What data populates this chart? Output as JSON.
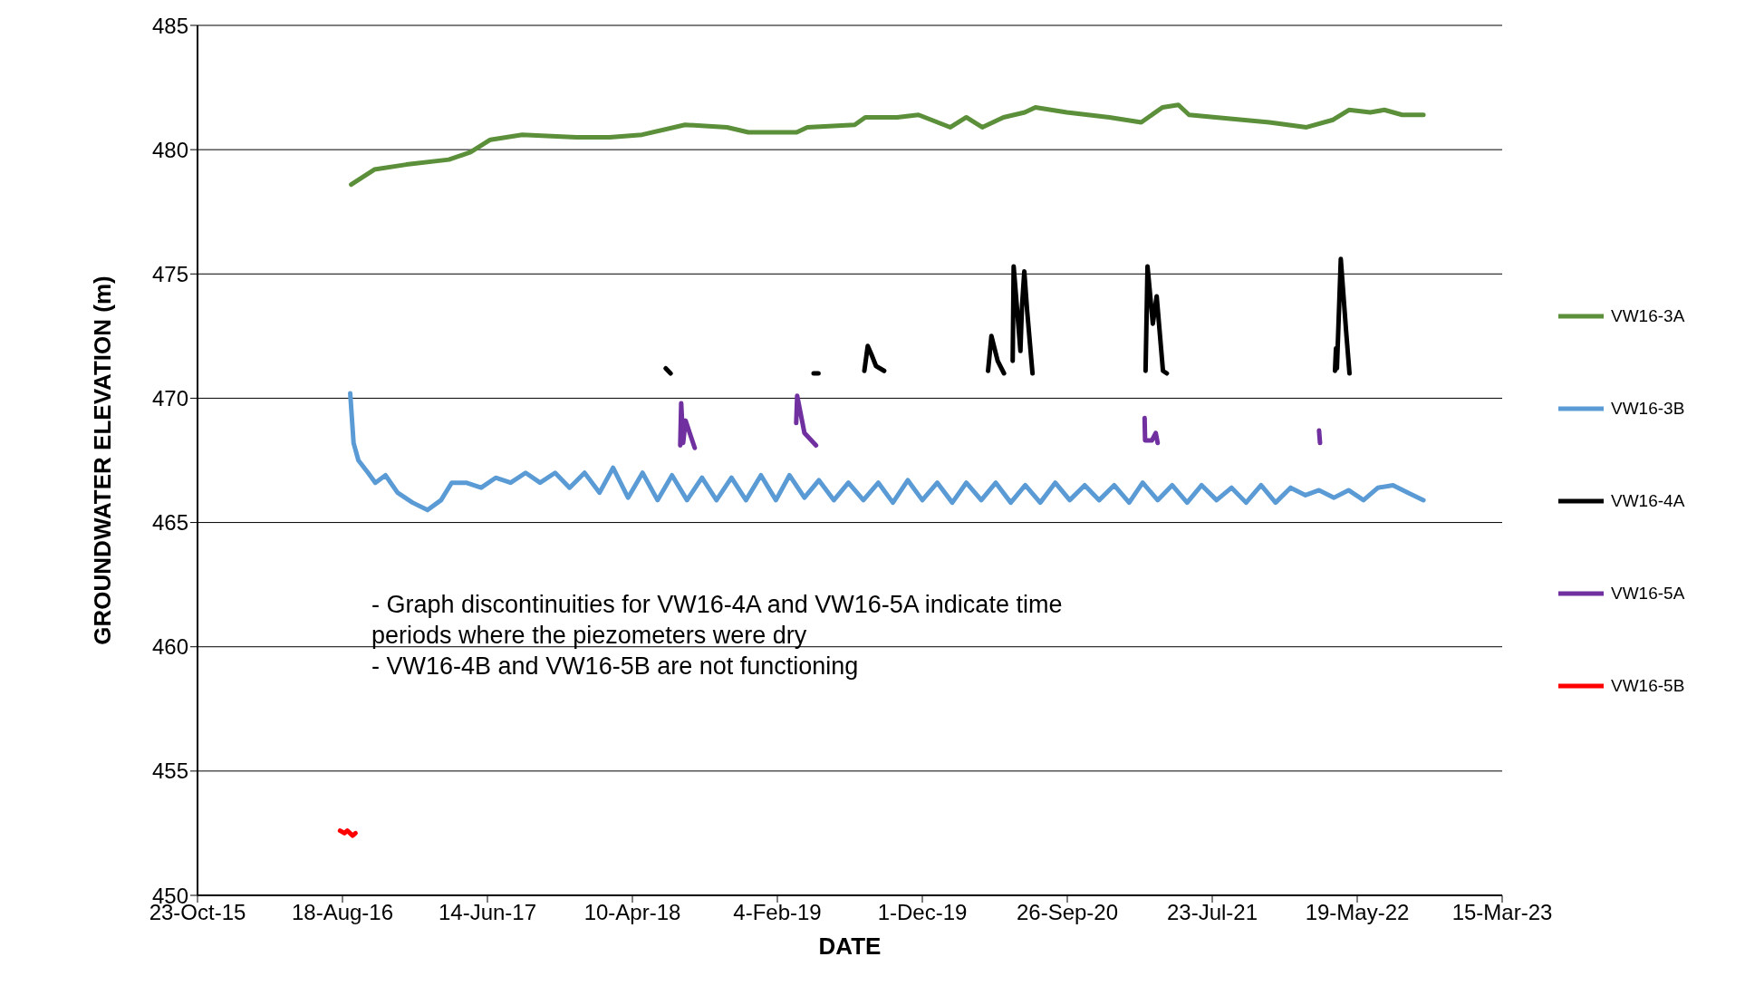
{
  "chart_data": {
    "type": "line",
    "xlabel": "DATE",
    "ylabel": "GROUNDWATER ELEVATION (m)",
    "xlim": [
      "2015-10-23",
      "2023-03-15"
    ],
    "xticks": [
      {
        "value": "2015-10-23",
        "label": "23-Oct-15"
      },
      {
        "value": "2016-08-18",
        "label": "18-Aug-16"
      },
      {
        "value": "2017-06-14",
        "label": "14-Jun-17"
      },
      {
        "value": "2018-04-10",
        "label": "10-Apr-18"
      },
      {
        "value": "2019-02-04",
        "label": "4-Feb-19"
      },
      {
        "value": "2019-12-01",
        "label": "1-Dec-19"
      },
      {
        "value": "2020-09-26",
        "label": "26-Sep-20"
      },
      {
        "value": "2021-07-23",
        "label": "23-Jul-21"
      },
      {
        "value": "2022-05-19",
        "label": "19-May-22"
      },
      {
        "value": "2023-03-15",
        "label": "15-Mar-23"
      }
    ],
    "ylim": [
      450,
      485
    ],
    "yticks": [
      450,
      455,
      460,
      465,
      470,
      475,
      480,
      485
    ],
    "grid": "y",
    "legend": "right",
    "marker": "none",
    "line_style": "solid",
    "annotations": [
      "- Graph discontinuities for VW16-4A and VW16-5A indicate time periods where the piezometers were dry",
      "- VW16-4B and VW16-5B are not functioning"
    ],
    "series": [
      {
        "name": "VW16-3A",
        "color": "#5b8f3a",
        "x": [
          "2016-09-05",
          "2016-10-23",
          "2016-12-28",
          "2017-03-26",
          "2017-05-10",
          "2017-06-20",
          "2017-08-25",
          "2017-12-15",
          "2018-02-22",
          "2018-04-30",
          "2018-07-28",
          "2018-10-23",
          "2018-12-06",
          "2019-03-16",
          "2019-04-07",
          "2019-07-14",
          "2019-08-05",
          "2019-10-10",
          "2019-11-23",
          "2020-01-28",
          "2020-03-01",
          "2020-04-03",
          "2020-05-17",
          "2020-06-30",
          "2020-07-22",
          "2020-09-25",
          "2020-12-22",
          "2021-02-26",
          "2021-04-11",
          "2021-05-14",
          "2021-06-05",
          "2021-07-30",
          "2021-11-18",
          "2022-02-03",
          "2022-03-30",
          "2022-05-02",
          "2022-06-15",
          "2022-07-14",
          "2022-08-20",
          "2022-10-03"
        ],
        "values": [
          478.6,
          479.2,
          479.4,
          479.6,
          479.9,
          480.4,
          480.6,
          480.5,
          480.5,
          480.6,
          481.0,
          480.9,
          480.7,
          480.7,
          480.9,
          481.0,
          481.3,
          481.3,
          481.4,
          480.9,
          481.3,
          480.9,
          481.3,
          481.5,
          481.7,
          481.5,
          481.3,
          481.1,
          481.7,
          481.8,
          481.4,
          481.3,
          481.1,
          480.9,
          481.2,
          481.6,
          481.5,
          481.6,
          481.4,
          481.4
        ]
      },
      {
        "name": "VW16-3B",
        "color": "#5b9bd5",
        "x": [
          "2016-09-03",
          "2016-09-10",
          "2016-09-20",
          "2016-10-10",
          "2016-10-25",
          "2016-11-15",
          "2016-12-10",
          "2017-01-10",
          "2017-02-10",
          "2017-03-10",
          "2017-04-01",
          "2017-05-01",
          "2017-06-01",
          "2017-07-01",
          "2017-08-01",
          "2017-09-01",
          "2017-10-01",
          "2017-11-01",
          "2017-12-01",
          "2018-01-01",
          "2018-02-01",
          "2018-03-01",
          "2018-04-01",
          "2018-05-01",
          "2018-06-01",
          "2018-07-01",
          "2018-08-01",
          "2018-09-01",
          "2018-10-01",
          "2018-11-01",
          "2018-12-01",
          "2019-01-01",
          "2019-02-01",
          "2019-03-01",
          "2019-04-01",
          "2019-05-01",
          "2019-06-01",
          "2019-07-01",
          "2019-08-01",
          "2019-09-01",
          "2019-10-01",
          "2019-11-01",
          "2019-12-01",
          "2020-01-01",
          "2020-02-01",
          "2020-03-01",
          "2020-04-01",
          "2020-05-01",
          "2020-06-01",
          "2020-07-01",
          "2020-08-01",
          "2020-09-01",
          "2020-10-01",
          "2020-11-01",
          "2020-12-01",
          "2021-01-01",
          "2021-02-01",
          "2021-03-01",
          "2021-04-01",
          "2021-05-01",
          "2021-06-01",
          "2021-07-01",
          "2021-08-01",
          "2021-09-01",
          "2021-10-01",
          "2021-11-01",
          "2021-12-01",
          "2022-01-01",
          "2022-02-01",
          "2022-03-01",
          "2022-04-01",
          "2022-05-01",
          "2022-06-01",
          "2022-07-01",
          "2022-08-01",
          "2022-09-01",
          "2022-10-03"
        ],
        "values": [
          470.2,
          468.2,
          467.5,
          467.0,
          466.6,
          466.9,
          466.2,
          465.8,
          465.5,
          465.9,
          466.6,
          466.6,
          466.4,
          466.8,
          466.6,
          467.0,
          466.6,
          467.0,
          466.4,
          467.0,
          466.2,
          467.2,
          466.0,
          467.0,
          465.9,
          466.9,
          465.9,
          466.8,
          465.9,
          466.8,
          465.9,
          466.9,
          465.9,
          466.9,
          466.0,
          466.7,
          465.9,
          466.6,
          465.9,
          466.6,
          465.8,
          466.7,
          465.9,
          466.6,
          465.8,
          466.6,
          465.9,
          466.6,
          465.8,
          466.5,
          465.8,
          466.6,
          465.9,
          466.5,
          465.9,
          466.5,
          465.8,
          466.6,
          465.9,
          466.5,
          465.8,
          466.5,
          465.9,
          466.4,
          465.8,
          466.5,
          465.8,
          466.4,
          466.1,
          466.3,
          466.0,
          466.3,
          465.9,
          466.4,
          466.5,
          466.2,
          465.9
        ]
      },
      {
        "name": "VW16-4A",
        "color": "#000000",
        "x": [
          "2018-06-18",
          "2018-06-28",
          "2018-07-10",
          "2019-04-20",
          "2019-04-30",
          "2019-05-10",
          "2019-08-03",
          "2019-08-10",
          "2019-08-19",
          "2019-08-27",
          "2019-09-13",
          "2019-10-01",
          "2020-04-15",
          "2020-04-22",
          "2020-05-05",
          "2020-05-18",
          "2020-05-28",
          "2020-06-05",
          "2020-06-07",
          "2020-06-21",
          "2020-06-24",
          "2020-06-29",
          "2020-07-05",
          "2020-07-16",
          "2020-08-01",
          "2021-03-07",
          "2021-03-11",
          "2021-03-22",
          "2021-03-30",
          "2021-04-12",
          "2021-04-20",
          "2021-05-10",
          "2022-04-03",
          "2022-04-05",
          "2022-04-07",
          "2022-04-15",
          "2022-04-26",
          "2022-05-03"
        ],
        "values": [
          471.2,
          471.0,
          null,
          471.0,
          471.0,
          null,
          471.1,
          472.1,
          471.7,
          471.3,
          471.1,
          null,
          471.1,
          472.5,
          471.5,
          471.0,
          null,
          471.5,
          475.3,
          471.9,
          473.6,
          475.1,
          473.5,
          471.0,
          null,
          471.1,
          475.3,
          473.0,
          474.1,
          471.1,
          471.0,
          null,
          471.1,
          472.0,
          471.2,
          475.6,
          472.7,
          471.0
        ]
      },
      {
        "name": "VW16-5A",
        "color": "#7030a0",
        "x": [
          "2018-07-18",
          "2018-07-20",
          "2018-07-24",
          "2018-07-29",
          "2018-08-17",
          "2018-09-01",
          "2019-03-15",
          "2019-03-17",
          "2019-04-01",
          "2019-04-25",
          "2019-05-10",
          "2021-03-05",
          "2021-03-06",
          "2021-03-20",
          "2021-03-28",
          "2021-04-01",
          "2021-04-15",
          "2022-03-01",
          "2022-03-03"
        ],
        "values": [
          468.1,
          469.8,
          468.2,
          469.1,
          468.0,
          null,
          469.0,
          470.1,
          468.6,
          468.1,
          null,
          469.2,
          468.3,
          468.3,
          468.6,
          468.2,
          null,
          468.7,
          468.2
        ]
      },
      {
        "name": "VW16-5B",
        "color": "#ff0000",
        "x": [
          "2016-08-13",
          "2016-08-22",
          "2016-08-28",
          "2016-09-08",
          "2016-09-14"
        ],
        "values": [
          452.6,
          452.5,
          452.6,
          452.4,
          452.5
        ]
      }
    ]
  }
}
